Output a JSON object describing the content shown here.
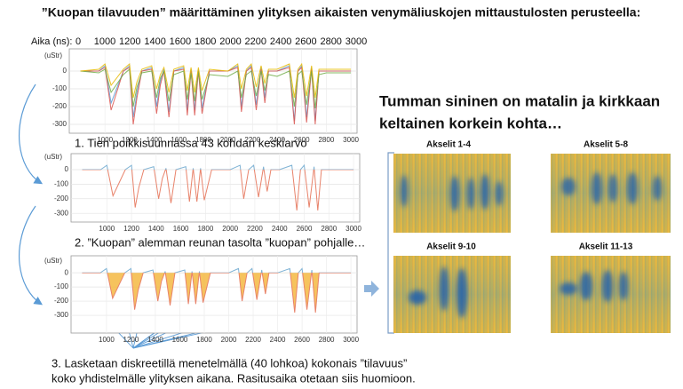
{
  "title": "”Kuopan tilavuuden” määrittäminen ylityksen aikaisten venymäliuskojen mittaustulosten perusteella:",
  "time_axis": {
    "label": "Aika (ns):",
    "ticks": [
      0,
      1000,
      1200,
      1400,
      1600,
      1800,
      2000,
      2200,
      2400,
      2600,
      2800,
      3000
    ]
  },
  "chart_data": [
    {
      "type": "line",
      "unit_label": "(uStr)",
      "x": [
        800,
        950,
        1000,
        1050,
        1150,
        1200,
        1230,
        1260,
        1300,
        1380,
        1420,
        1450,
        1480,
        1520,
        1560,
        1640,
        1670,
        1700,
        1730,
        1760,
        1790,
        1850,
        2000,
        2080,
        2110,
        2150,
        2190,
        2230,
        2270,
        2300,
        2330,
        2400,
        2500,
        2540,
        2570,
        2600,
        2640,
        2680,
        2710,
        2740,
        2800,
        3000
      ],
      "series": [
        {
          "color": "#5b9bd5",
          "values": [
            0,
            0,
            30,
            -180,
            0,
            30,
            -260,
            -120,
            0,
            20,
            -200,
            -60,
            10,
            -230,
            0,
            20,
            -220,
            10,
            -220,
            10,
            -210,
            0,
            0,
            30,
            -200,
            0,
            30,
            -190,
            20,
            -150,
            0,
            0,
            30,
            -280,
            0,
            30,
            -260,
            20,
            -280,
            0,
            0,
            0
          ]
        },
        {
          "color": "#d9534f",
          "values": [
            0,
            0,
            20,
            -220,
            0,
            20,
            -300,
            -150,
            0,
            10,
            -240,
            -80,
            0,
            -260,
            0,
            10,
            -250,
            0,
            -250,
            0,
            -240,
            0,
            0,
            20,
            -230,
            0,
            20,
            -220,
            10,
            -180,
            0,
            0,
            20,
            -300,
            0,
            20,
            -290,
            10,
            -300,
            0,
            0,
            0
          ]
        },
        {
          "color": "#70ad47",
          "values": [
            0,
            -10,
            10,
            -120,
            -20,
            10,
            -200,
            -90,
            -10,
            0,
            -150,
            -40,
            0,
            -170,
            -20,
            0,
            -160,
            -10,
            -170,
            0,
            -160,
            -20,
            -30,
            0,
            -150,
            -20,
            0,
            -140,
            0,
            -110,
            -20,
            -30,
            0,
            -200,
            -20,
            0,
            -190,
            0,
            -210,
            -20,
            -10,
            -10
          ]
        },
        {
          "color": "#e6b800",
          "values": [
            0,
            10,
            40,
            -80,
            10,
            40,
            -150,
            -60,
            10,
            30,
            -100,
            -20,
            20,
            -120,
            10,
            30,
            -110,
            20,
            -120,
            20,
            -110,
            10,
            0,
            40,
            -100,
            10,
            40,
            -90,
            30,
            -70,
            10,
            10,
            40,
            -150,
            10,
            40,
            -140,
            30,
            -150,
            10,
            10,
            10
          ]
        }
      ],
      "xlim": [
        710,
        3050
      ],
      "ylim": [
        -350,
        125
      ],
      "xticks": [
        1000,
        1200,
        1400,
        1600,
        1800,
        2000,
        2200,
        2400,
        2600,
        2800,
        3000
      ],
      "yticks": [
        0,
        -100,
        -200,
        -300
      ],
      "grid": true
    },
    {
      "type": "line",
      "unit_label": "(uStr)",
      "x": [
        800,
        950,
        1000,
        1050,
        1150,
        1200,
        1230,
        1260,
        1300,
        1380,
        1420,
        1450,
        1480,
        1520,
        1560,
        1640,
        1670,
        1700,
        1730,
        1760,
        1790,
        1850,
        2000,
        2080,
        2110,
        2150,
        2190,
        2230,
        2270,
        2300,
        2330,
        2400,
        2500,
        2540,
        2570,
        2600,
        2640,
        2680,
        2710,
        2740,
        2800,
        3000
      ],
      "series": [
        {
          "color": "#7fb3d5",
          "negative_color": "#e8836b",
          "values": [
            0,
            0,
            30,
            -180,
            0,
            30,
            -260,
            -120,
            0,
            20,
            -200,
            -60,
            10,
            -230,
            0,
            20,
            -220,
            10,
            -220,
            10,
            -210,
            0,
            0,
            30,
            -200,
            0,
            30,
            -190,
            20,
            -150,
            0,
            0,
            30,
            -280,
            0,
            30,
            -260,
            20,
            -280,
            0,
            0,
            0
          ]
        }
      ],
      "xlim": [
        710,
        3050
      ],
      "ylim": [
        -360,
        110
      ],
      "xticks": [
        1000,
        1200,
        1400,
        1600,
        1800,
        2000,
        2200,
        2400,
        2600,
        2800,
        3000
      ],
      "yticks": [
        0,
        -100,
        -200,
        -300
      ],
      "grid": true
    },
    {
      "type": "area",
      "unit_label": "(uStr)",
      "x": [
        800,
        950,
        1000,
        1050,
        1150,
        1200,
        1230,
        1260,
        1300,
        1380,
        1420,
        1450,
        1480,
        1520,
        1560,
        1640,
        1670,
        1700,
        1730,
        1760,
        1790,
        1850,
        2000,
        2080,
        2110,
        2150,
        2190,
        2230,
        2270,
        2300,
        2330,
        2400,
        2500,
        2540,
        2570,
        2600,
        2640,
        2680,
        2710,
        2740,
        2800,
        3000
      ],
      "series": [
        {
          "color": "#7fb3d5",
          "negative_color": "#e8836b",
          "fill_color": "#f5b942",
          "values": [
            0,
            0,
            30,
            -180,
            0,
            30,
            -260,
            -120,
            0,
            20,
            -200,
            -60,
            10,
            -230,
            0,
            20,
            -220,
            10,
            -220,
            10,
            -210,
            0,
            0,
            30,
            -200,
            0,
            30,
            -190,
            20,
            -150,
            0,
            0,
            30,
            -280,
            0,
            30,
            -260,
            20,
            -280,
            0,
            0,
            0
          ]
        }
      ],
      "xlim": [
        710,
        3050
      ],
      "ylim": [
        -425,
        120
      ],
      "xticks": [
        1000,
        1200,
        1400,
        1600,
        1800,
        2000,
        2200,
        2400,
        2600,
        2800,
        3000
      ],
      "yticks": [
        0,
        -100,
        -200,
        -300
      ],
      "grid": true
    }
  ],
  "captions": [
    "1. Tien poikkisuunnassa 43 kohdan keskiarvo",
    "2. ”Kuopan” alemman reunan tasolta ”kuopan” pohjalle…"
  ],
  "note": [
    "3. Lasketaan diskreetillä menetelmällä (40 lohkoa) kokonais ”tilavuus”",
    "koko yhdistelmälle ylityksen aikana. Rasitusaika otetaan siis huomioon."
  ],
  "headline": [
    "Tumman sininen on matalin ja kirkkaan",
    "keltainen korkein kohta…"
  ],
  "heatmaps": [
    {
      "label": "Akselit 1-4"
    },
    {
      "label": "Akselit 5-8"
    },
    {
      "label": "Akselit 9-10"
    },
    {
      "label": "Akselit 11-13"
    }
  ]
}
